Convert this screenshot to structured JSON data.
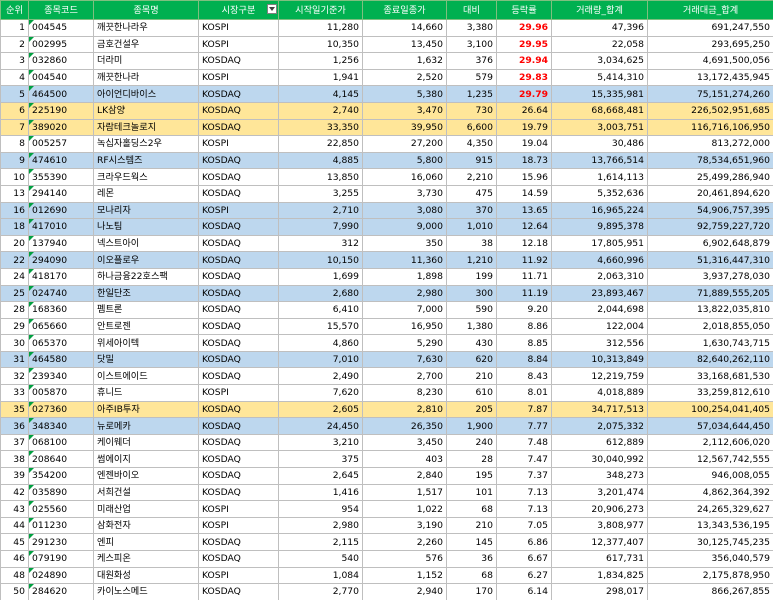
{
  "headers": [
    "순위",
    "종목코드",
    "종목명",
    "시장구분",
    "시작일기준가",
    "종료일종가",
    "대비",
    "등락률",
    "거래량_합계",
    "거래대금_합계"
  ],
  "rows": [
    {
      "rank": "1",
      "code": "004545",
      "name": "깨끗한나라우",
      "market": "KOSPI",
      "start": "11,280",
      "end": "14,660",
      "diff": "3,380",
      "rate": "29.96",
      "volume": "47,396",
      "amount": "691,247,550",
      "hl": "",
      "red": true
    },
    {
      "rank": "2",
      "code": "002995",
      "name": "금호건설우",
      "market": "KOSPI",
      "start": "10,350",
      "end": "13,450",
      "diff": "3,100",
      "rate": "29.95",
      "volume": "22,058",
      "amount": "293,695,250",
      "hl": "",
      "red": true
    },
    {
      "rank": "3",
      "code": "032860",
      "name": "더라미",
      "market": "KOSDAQ",
      "start": "1,256",
      "end": "1,632",
      "diff": "376",
      "rate": "29.94",
      "volume": "3,034,625",
      "amount": "4,691,500,056",
      "hl": "",
      "red": true
    },
    {
      "rank": "4",
      "code": "004540",
      "name": "깨끗한나라",
      "market": "KOSPI",
      "start": "1,941",
      "end": "2,520",
      "diff": "579",
      "rate": "29.83",
      "volume": "5,414,310",
      "amount": "13,172,435,945",
      "hl": "",
      "red": true
    },
    {
      "rank": "5",
      "code": "464500",
      "name": "아이언디바이스",
      "market": "KOSDAQ",
      "start": "4,145",
      "end": "5,380",
      "diff": "1,235",
      "rate": "29.79",
      "volume": "15,335,981",
      "amount": "75,151,274,260",
      "hl": "blue",
      "red": true
    },
    {
      "rank": "6",
      "code": "225190",
      "name": "LK삼양",
      "market": "KOSDAQ",
      "start": "2,740",
      "end": "3,470",
      "diff": "730",
      "rate": "26.64",
      "volume": "68,668,481",
      "amount": "226,502,951,685",
      "hl": "orange",
      "red": false
    },
    {
      "rank": "7",
      "code": "389020",
      "name": "자람테크놀로지",
      "market": "KOSDAQ",
      "start": "33,350",
      "end": "39,950",
      "diff": "6,600",
      "rate": "19.79",
      "volume": "3,003,751",
      "amount": "116,716,106,950",
      "hl": "orange",
      "red": false
    },
    {
      "rank": "8",
      "code": "005257",
      "name": "녹십자홀딩스2우",
      "market": "KOSPI",
      "start": "22,850",
      "end": "27,200",
      "diff": "4,350",
      "rate": "19.04",
      "volume": "30,486",
      "amount": "813,272,000",
      "hl": "",
      "red": false
    },
    {
      "rank": "9",
      "code": "474610",
      "name": "RF시스템즈",
      "market": "KOSDAQ",
      "start": "4,885",
      "end": "5,800",
      "diff": "915",
      "rate": "18.73",
      "volume": "13,766,514",
      "amount": "78,534,651,960",
      "hl": "blue",
      "red": false
    },
    {
      "rank": "10",
      "code": "355390",
      "name": "크라우드웍스",
      "market": "KOSDAQ",
      "start": "13,850",
      "end": "16,060",
      "diff": "2,210",
      "rate": "15.96",
      "volume": "1,614,113",
      "amount": "25,499,286,940",
      "hl": "",
      "red": false
    },
    {
      "rank": "13",
      "code": "294140",
      "name": "레몬",
      "market": "KOSDAQ",
      "start": "3,255",
      "end": "3,730",
      "diff": "475",
      "rate": "14.59",
      "volume": "5,352,636",
      "amount": "20,461,894,620",
      "hl": "",
      "red": false
    },
    {
      "rank": "16",
      "code": "012690",
      "name": "모나리자",
      "market": "KOSPI",
      "start": "2,710",
      "end": "3,080",
      "diff": "370",
      "rate": "13.65",
      "volume": "16,965,224",
      "amount": "54,906,757,395",
      "hl": "blue",
      "red": false
    },
    {
      "rank": "18",
      "code": "417010",
      "name": "나노팀",
      "market": "KOSDAQ",
      "start": "7,990",
      "end": "9,000",
      "diff": "1,010",
      "rate": "12.64",
      "volume": "9,895,378",
      "amount": "92,759,227,720",
      "hl": "blue",
      "red": false
    },
    {
      "rank": "20",
      "code": "137940",
      "name": "넥스트아이",
      "market": "KOSDAQ",
      "start": "312",
      "end": "350",
      "diff": "38",
      "rate": "12.18",
      "volume": "17,805,951",
      "amount": "6,902,648,879",
      "hl": "",
      "red": false
    },
    {
      "rank": "22",
      "code": "294090",
      "name": "이오플로우",
      "market": "KOSDAQ",
      "start": "10,150",
      "end": "11,360",
      "diff": "1,210",
      "rate": "11.92",
      "volume": "4,660,996",
      "amount": "51,316,447,310",
      "hl": "blue",
      "red": false
    },
    {
      "rank": "24",
      "code": "418170",
      "name": "하나금융22호스팩",
      "market": "KOSDAQ",
      "start": "1,699",
      "end": "1,898",
      "diff": "199",
      "rate": "11.71",
      "volume": "2,063,310",
      "amount": "3,937,278,030",
      "hl": "",
      "red": false
    },
    {
      "rank": "25",
      "code": "024740",
      "name": "한일단조",
      "market": "KOSDAQ",
      "start": "2,680",
      "end": "2,980",
      "diff": "300",
      "rate": "11.19",
      "volume": "23,893,467",
      "amount": "71,889,555,205",
      "hl": "blue",
      "red": false
    },
    {
      "rank": "28",
      "code": "168360",
      "name": "펨트론",
      "market": "KOSDAQ",
      "start": "6,410",
      "end": "7,000",
      "diff": "590",
      "rate": "9.20",
      "volume": "2,044,698",
      "amount": "13,822,035,810",
      "hl": "",
      "red": false
    },
    {
      "rank": "29",
      "code": "065660",
      "name": "안트로젠",
      "market": "KOSDAQ",
      "start": "15,570",
      "end": "16,950",
      "diff": "1,380",
      "rate": "8.86",
      "volume": "122,004",
      "amount": "2,018,855,050",
      "hl": "",
      "red": false
    },
    {
      "rank": "30",
      "code": "065370",
      "name": "위세아이텍",
      "market": "KOSDAQ",
      "start": "4,860",
      "end": "5,290",
      "diff": "430",
      "rate": "8.85",
      "volume": "312,556",
      "amount": "1,630,743,715",
      "hl": "",
      "red": false
    },
    {
      "rank": "31",
      "code": "464580",
      "name": "닷밀",
      "market": "KOSDAQ",
      "start": "7,010",
      "end": "7,630",
      "diff": "620",
      "rate": "8.84",
      "volume": "10,313,849",
      "amount": "82,640,262,110",
      "hl": "blue",
      "red": false
    },
    {
      "rank": "32",
      "code": "239340",
      "name": "이스트에이드",
      "market": "KOSDAQ",
      "start": "2,490",
      "end": "2,700",
      "diff": "210",
      "rate": "8.43",
      "volume": "12,219,759",
      "amount": "33,168,681,530",
      "hl": "",
      "red": false
    },
    {
      "rank": "33",
      "code": "005870",
      "name": "휴니드",
      "market": "KOSPI",
      "start": "7,620",
      "end": "8,230",
      "diff": "610",
      "rate": "8.01",
      "volume": "4,018,889",
      "amount": "33,259,812,610",
      "hl": "",
      "red": false
    },
    {
      "rank": "35",
      "code": "027360",
      "name": "아주IB투자",
      "market": "KOSDAQ",
      "start": "2,605",
      "end": "2,810",
      "diff": "205",
      "rate": "7.87",
      "volume": "34,717,513",
      "amount": "100,254,041,405",
      "hl": "orange",
      "red": false
    },
    {
      "rank": "36",
      "code": "348340",
      "name": "뉴로메카",
      "market": "KOSDAQ",
      "start": "24,450",
      "end": "26,350",
      "diff": "1,900",
      "rate": "7.77",
      "volume": "2,075,332",
      "amount": "57,034,644,450",
      "hl": "blue",
      "red": false
    },
    {
      "rank": "37",
      "code": "068100",
      "name": "케이웨더",
      "market": "KOSDAQ",
      "start": "3,210",
      "end": "3,450",
      "diff": "240",
      "rate": "7.48",
      "volume": "612,889",
      "amount": "2,112,606,020",
      "hl": "",
      "red": false
    },
    {
      "rank": "38",
      "code": "208640",
      "name": "썸에이지",
      "market": "KOSDAQ",
      "start": "375",
      "end": "403",
      "diff": "28",
      "rate": "7.47",
      "volume": "30,040,992",
      "amount": "12,567,742,555",
      "hl": "",
      "red": false
    },
    {
      "rank": "39",
      "code": "354200",
      "name": "엔젠바이오",
      "market": "KOSDAQ",
      "start": "2,645",
      "end": "2,840",
      "diff": "195",
      "rate": "7.37",
      "volume": "348,273",
      "amount": "946,008,055",
      "hl": "",
      "red": false
    },
    {
      "rank": "42",
      "code": "035890",
      "name": "서희건설",
      "market": "KOSDAQ",
      "start": "1,416",
      "end": "1,517",
      "diff": "101",
      "rate": "7.13",
      "volume": "3,201,474",
      "amount": "4,862,364,392",
      "hl": "",
      "red": false
    },
    {
      "rank": "43",
      "code": "025560",
      "name": "미래산업",
      "market": "KOSPI",
      "start": "954",
      "end": "1,022",
      "diff": "68",
      "rate": "7.13",
      "volume": "20,906,273",
      "amount": "24,265,329,627",
      "hl": "",
      "red": false
    },
    {
      "rank": "44",
      "code": "011230",
      "name": "삼화전자",
      "market": "KOSPI",
      "start": "2,980",
      "end": "3,190",
      "diff": "210",
      "rate": "7.05",
      "volume": "3,808,977",
      "amount": "13,343,536,195",
      "hl": "",
      "red": false
    },
    {
      "rank": "45",
      "code": "291230",
      "name": "엔피",
      "market": "KOSDAQ",
      "start": "2,115",
      "end": "2,260",
      "diff": "145",
      "rate": "6.86",
      "volume": "12,377,407",
      "amount": "30,125,745,235",
      "hl": "",
      "red": false
    },
    {
      "rank": "46",
      "code": "079190",
      "name": "케스피온",
      "market": "KOSDAQ",
      "start": "540",
      "end": "576",
      "diff": "36",
      "rate": "6.67",
      "volume": "617,731",
      "amount": "356,040,579",
      "hl": "",
      "red": false
    },
    {
      "rank": "48",
      "code": "024890",
      "name": "대원화성",
      "market": "KOSPI",
      "start": "1,084",
      "end": "1,152",
      "diff": "68",
      "rate": "6.27",
      "volume": "1,834,825",
      "amount": "2,175,878,950",
      "hl": "",
      "red": false
    },
    {
      "rank": "50",
      "code": "284620",
      "name": "카이노스메드",
      "market": "KOSDAQ",
      "start": "2,770",
      "end": "2,940",
      "diff": "170",
      "rate": "6.14",
      "volume": "298,017",
      "amount": "866,267,855",
      "hl": "",
      "red": false
    }
  ]
}
